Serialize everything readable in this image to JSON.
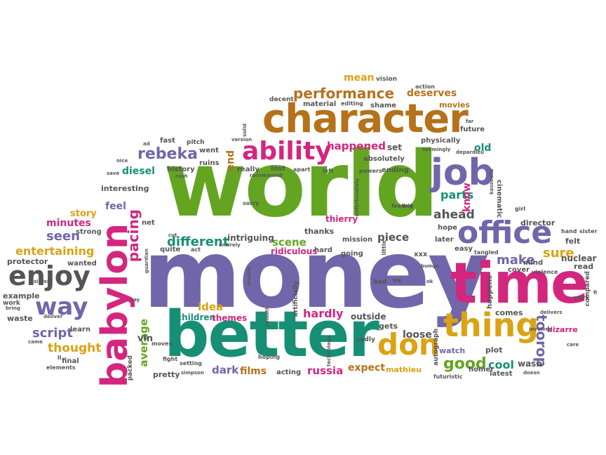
{
  "colors": {
    "purple": "#7166aa",
    "green": "#63a521",
    "teal": "#178f74",
    "pink": "#d3267f",
    "orange": "#dba214",
    "brown": "#b5721b",
    "gray": "#555555"
  },
  "words": {
    "w1": "world",
    "w2": "money",
    "w3": "better",
    "w4": "time",
    "w5": "character",
    "w6": "babylon",
    "w7": "job",
    "w8": "office",
    "w9": "thing",
    "w10": "don",
    "w11": "ability",
    "w12": "enjoy",
    "w13": "way",
    "w14": "performance",
    "w15": "rebeka",
    "w16": "pacing",
    "w17": "toorop",
    "w18": "good",
    "w19": "seen",
    "w20": "entertaining",
    "w21": "different",
    "w22": "make",
    "w23": "sure",
    "w24": "script",
    "w25": "thought",
    "w26": "parts",
    "w27": "ahead",
    "w28": "happened",
    "w29": "idea",
    "w30": "average",
    "w31": "russia",
    "w32": "dark",
    "w33": "films",
    "w34": "hardly",
    "w35": "cool",
    "w36": "minutes",
    "w37": "story",
    "w38": "feel",
    "w39": "piece",
    "w40": "scene",
    "w41": "mean",
    "w42": "deserves",
    "w43": "movies",
    "w44": "diesel",
    "w45": "expect",
    "w46": "loose",
    "w47": "know",
    "w48": "old",
    "w49": "end",
    "w50": "mathieu",
    "w51": "vin",
    "w52": "wasn",
    "w53": "outside",
    "w54": "gets",
    "w55": "children",
    "w56": "themes",
    "w57": "intriguing",
    "w58": "ridiculous",
    "w59": "thierry",
    "w60": "mission",
    "w61": "thanks",
    "w62": "nuclear",
    "w63": "read",
    "w64": "felt",
    "w65": "director",
    "w66": "bizarre",
    "w67": "comes",
    "w68": "watch",
    "w69": "plot",
    "w70": "homer",
    "w71": "latest",
    "w72": "pretty",
    "w73": "acting",
    "w74": "learn",
    "w75": "final",
    "w76": "waste",
    "w77": "example",
    "w78": "protector",
    "w79": "wanted",
    "w80": "strong",
    "w81": "interesting",
    "w82": "history",
    "w83": "ruins",
    "w84": "went",
    "w85": "fast",
    "w86": "pitch",
    "w87": "really",
    "w88": "lost",
    "w89": "set",
    "w90": "absolutely",
    "w91": "ending",
    "w92": "material",
    "w93": "shame",
    "w94": "decent",
    "w95": "vision",
    "w96": "action",
    "w97": "editing",
    "w98": "physically",
    "w99": "future",
    "w100": "cinematic",
    "w101": "hope",
    "w102": "later",
    "w103": "easy",
    "w104": "quite",
    "w105": "hard",
    "w106": "going",
    "w107": "happens",
    "w108": "compared",
    "w109": "york",
    "w110": "packed",
    "w111": "cover",
    "w112": "mind",
    "w113": "violence",
    "w114": "xxx",
    "w115": "net",
    "w116": "artificially",
    "w117": "autograph",
    "w118": "bad",
    "w119": "ve",
    "w120": "sadly",
    "w121": "little",
    "w122": "sorry",
    "w123": "apart",
    "w124": "left",
    "w125": "powers",
    "w126": "feeling",
    "w127": "girl",
    "w128": "sister",
    "w129": "hand",
    "w130": "care",
    "w131": "fight",
    "w132": "setting",
    "w133": "simpson",
    "w134": "hoping",
    "w135": "futuristic",
    "w136": "doesn",
    "w137": "tangled",
    "w138": "elements",
    "w139": "came",
    "w140": "bring",
    "w141": "work",
    "w142": "sisters",
    "w143": "deliver",
    "w144": "say",
    "w145": "guardian",
    "w146": "entirely",
    "w147": "act",
    "w148": "cut",
    "w149": "recommend",
    "w150": "version",
    "w151": "seemingly",
    "w152": "unfortunately",
    "w153": "far",
    "w154": "depardieu",
    "w155": "visuals",
    "w156": "smooth",
    "w157": "technology",
    "w158": "bumps",
    "w159": "involved",
    "w160": "moves",
    "w161": "ll",
    "w162": "rush",
    "w163": "save",
    "w164": "solid",
    "w165": "delivers",
    "w166": "ad",
    "w167": "kassovitz",
    "w168": "mix",
    "w169": "nice",
    "w170": "ok",
    "w171": "fi"
  }
}
